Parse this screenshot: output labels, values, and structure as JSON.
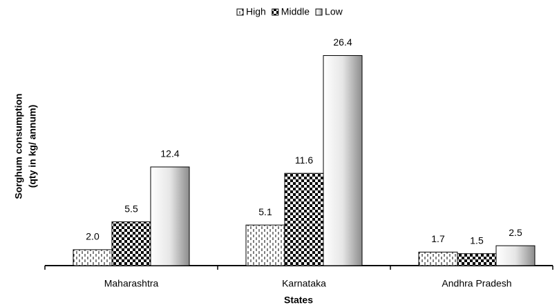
{
  "chart_data": {
    "type": "bar",
    "ylabel": [
      "Sorghum consumption",
      "(qty in kg/ annum)"
    ],
    "xlabel": "States",
    "categories": [
      "Maharashtra",
      "Karnataka",
      "Andhra Pradesh"
    ],
    "series": [
      {
        "name": "High",
        "pattern": "dashed",
        "values": [
          2.0,
          5.1,
          1.7
        ],
        "value_labels": [
          "2.0",
          "5.1",
          "1.7"
        ]
      },
      {
        "name": "Middle",
        "pattern": "checker",
        "values": [
          5.5,
          11.6,
          1.5
        ],
        "value_labels": [
          "5.5",
          "11.6",
          "1.5"
        ]
      },
      {
        "name": "Low",
        "pattern": "gradient",
        "values": [
          12.4,
          26.4,
          2.5
        ],
        "value_labels": [
          "12.4",
          "26.4",
          "2.5"
        ]
      }
    ],
    "ylim": [
      0,
      30
    ],
    "legend": "top"
  }
}
